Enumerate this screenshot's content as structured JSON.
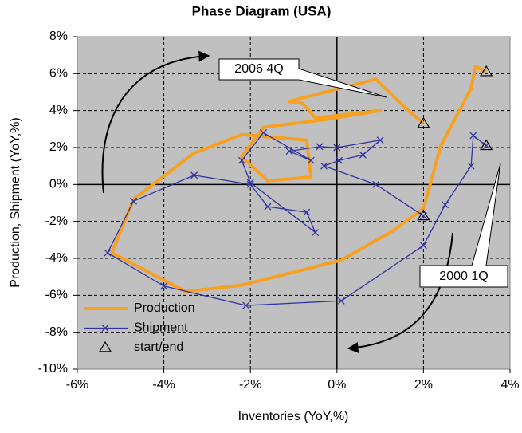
{
  "chart_data": {
    "type": "scatter",
    "title": "Phase Diagram (USA)",
    "xlabel": "Inventories (YoY,%)",
    "ylabel": "Production, Shipment (YoY,%)",
    "xlim": [
      -6,
      4
    ],
    "ylim": [
      -10,
      8
    ],
    "xticks": [
      {
        "value": -6,
        "label": "-6%"
      },
      {
        "value": -4,
        "label": "-4%"
      },
      {
        "value": -2,
        "label": "-2%"
      },
      {
        "value": 0,
        "label": "0%"
      },
      {
        "value": 2,
        "label": "2%"
      },
      {
        "value": 4,
        "label": "4%"
      }
    ],
    "yticks": [
      {
        "value": -10,
        "label": "-10%"
      },
      {
        "value": -8,
        "label": "-8%"
      },
      {
        "value": -6,
        "label": "-6%"
      },
      {
        "value": -4,
        "label": "-4%"
      },
      {
        "value": -2,
        "label": "-2%"
      },
      {
        "value": 0,
        "label": "0%"
      },
      {
        "value": 2,
        "label": "2%"
      },
      {
        "value": 4,
        "label": "4%"
      },
      {
        "value": 6,
        "label": "6%"
      },
      {
        "value": 8,
        "label": "8%"
      }
    ],
    "grid": true,
    "annotations": [
      "2006 4Q",
      "2000 1Q"
    ],
    "series": [
      {
        "name": "Production",
        "color": "#f8a020",
        "marker": "none",
        "x": [
          3.45,
          3.2,
          3.1,
          2.4,
          2.0,
          1.3,
          0.1,
          -2.2,
          -3.5,
          -5.2,
          -4.7,
          -3.3,
          -2.2,
          -0.7,
          -0.6,
          -1.6,
          -2.2,
          -1.7,
          -0.3,
          1.0,
          -0.5,
          -0.8,
          -1.1,
          0.9,
          1.6,
          2.0
        ],
        "values": [
          6.1,
          6.4,
          5.2,
          2.1,
          -1.3,
          -2.5,
          -4.1,
          -5.45,
          -5.8,
          -3.7,
          -0.8,
          1.7,
          2.7,
          2.4,
          0.4,
          0.2,
          1.5,
          3.1,
          3.5,
          4.0,
          3.6,
          4.4,
          4.5,
          5.7,
          4.1,
          3.3
        ]
      },
      {
        "name": "Shipment",
        "color": "#3333a0",
        "marker": "x",
        "x": [
          3.45,
          3.15,
          3.1,
          2.5,
          2.0,
          0.1,
          -2.1,
          -4.0,
          -5.3,
          -4.7,
          -3.3,
          -2.0,
          -1.6,
          -0.7,
          -0.5,
          -2.0,
          -2.2,
          -1.7,
          -0.6,
          -1.1,
          -0.4,
          0.0,
          1.0,
          0.6,
          0.05,
          -0.3,
          0.9,
          2.0
        ],
        "values": [
          2.1,
          2.65,
          1.0,
          -1.1,
          -3.3,
          -6.3,
          -6.55,
          -5.5,
          -3.7,
          -0.9,
          0.5,
          0.0,
          -1.2,
          -1.5,
          -2.6,
          0.1,
          1.3,
          2.8,
          1.3,
          1.8,
          2.05,
          2.0,
          2.4,
          1.6,
          1.3,
          1.0,
          0.0,
          -1.7
        ]
      },
      {
        "name": "start/end",
        "color": "#000000",
        "marker": "triangle",
        "x": [
          3.45,
          2.0,
          3.45,
          2.0
        ],
        "values": [
          6.1,
          3.3,
          2.1,
          -1.7
        ]
      }
    ]
  }
}
